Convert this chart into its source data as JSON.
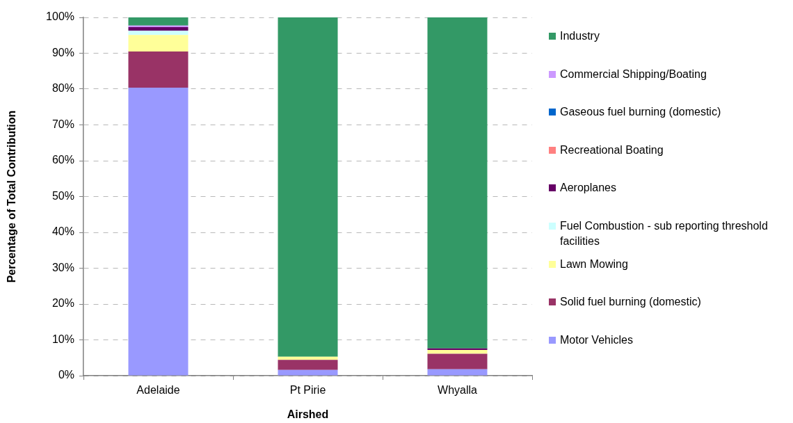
{
  "chart_data": {
    "type": "bar",
    "stacked": true,
    "xlabel": "Airshed",
    "ylabel": "Percentage of Total Contribution",
    "categories": [
      "Adelaide",
      "Pt Pirie",
      "Whyalla"
    ],
    "series": [
      {
        "name": "Motor Vehicles",
        "color": "#9999ff",
        "values": [
          80.4,
          1.6,
          1.8
        ]
      },
      {
        "name": "Solid fuel burning (domestic)",
        "color": "#993366",
        "values": [
          10.1,
          2.8,
          4.3
        ]
      },
      {
        "name": "Lawn Mowing",
        "color": "#ffff99",
        "values": [
          4.6,
          0.9,
          1.1
        ]
      },
      {
        "name": "Fuel Combustion - sub reporting threshold facilities",
        "color": "#ccffff",
        "values": [
          1.2,
          0,
          0
        ]
      },
      {
        "name": "Aeroplanes",
        "color": "#660066",
        "values": [
          1.0,
          0,
          0.4
        ]
      },
      {
        "name": "Recreational Boating",
        "color": "#ff8080",
        "values": [
          0,
          0,
          0
        ]
      },
      {
        "name": "Gaseous fuel burning (domestic)",
        "color": "#0066cc",
        "values": [
          0,
          0,
          0
        ]
      },
      {
        "name": "Commercial Shipping/Boating",
        "color": "#cc99ff",
        "values": [
          0.4,
          0,
          0
        ]
      },
      {
        "name": "Industry",
        "color": "#339966",
        "values": [
          2.3,
          94.7,
          92.4
        ]
      }
    ],
    "ylim": [
      0,
      100
    ],
    "yticks": [
      {
        "value": 0,
        "label": "0%"
      },
      {
        "value": 10,
        "label": "10%"
      },
      {
        "value": 20,
        "label": "20%"
      },
      {
        "value": 30,
        "label": "30%"
      },
      {
        "value": 40,
        "label": "40%"
      },
      {
        "value": 50,
        "label": "50%"
      },
      {
        "value": 60,
        "label": "60%"
      },
      {
        "value": 70,
        "label": "70%"
      },
      {
        "value": 80,
        "label": "80%"
      },
      {
        "value": 90,
        "label": "90%"
      },
      {
        "value": 100,
        "label": "100%"
      }
    ],
    "grid": "y",
    "legend": "right"
  }
}
